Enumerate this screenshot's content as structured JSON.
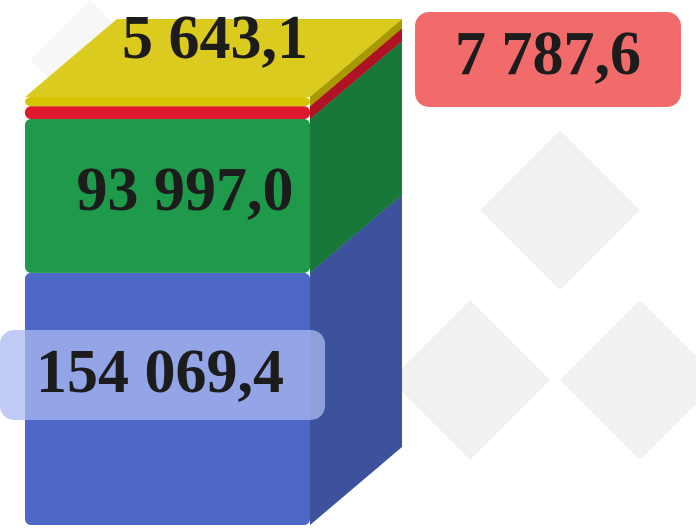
{
  "chart_data": {
    "type": "bar",
    "stacked": true,
    "categories": [
      null
    ],
    "series": [
      {
        "color": "#4f68c8",
        "values": [
          154069.4
        ],
        "value_labels": [
          "154 069,4"
        ]
      },
      {
        "color": "#1f9a4a",
        "values": [
          93997.0
        ],
        "value_labels": [
          "93 997,0"
        ]
      },
      {
        "color": "#e0182c",
        "values": [
          7787.6
        ],
        "value_labels": [
          "7 787,6"
        ]
      },
      {
        "color": "#d6c400",
        "values": [
          5643.1
        ],
        "value_labels": [
          "5 643,1"
        ]
      }
    ]
  }
}
